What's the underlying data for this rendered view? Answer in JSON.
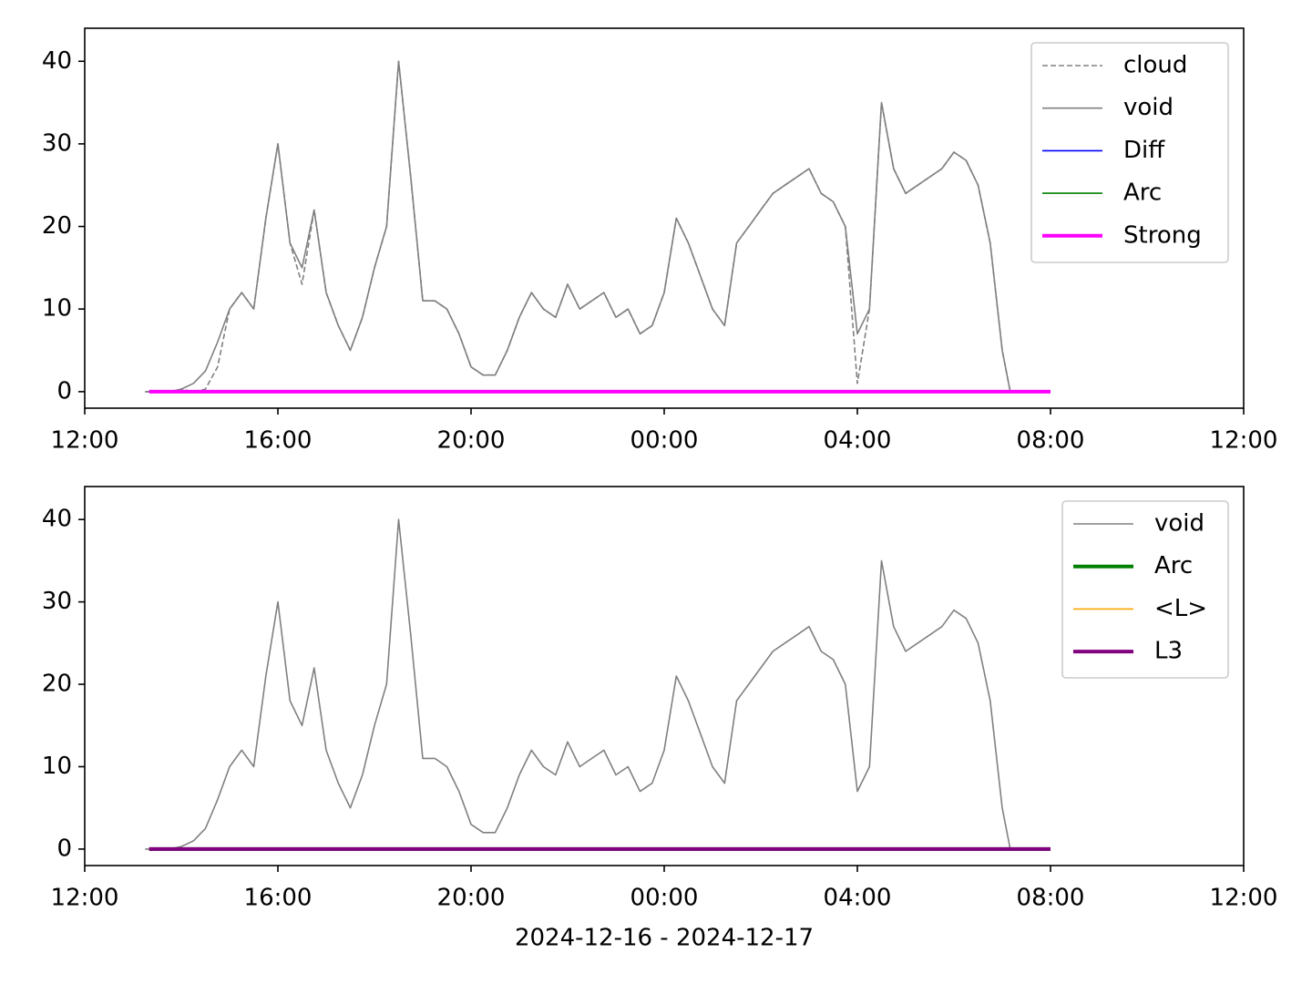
{
  "chart_data": [
    {
      "type": "line",
      "x": [
        "2024-12-16T13:15",
        "2024-12-16T13:30",
        "2024-12-16T13:45",
        "2024-12-16T14:00",
        "2024-12-16T14:15",
        "2024-12-16T14:30",
        "2024-12-16T14:45",
        "2024-12-16T15:00",
        "2024-12-16T15:15",
        "2024-12-16T15:30",
        "2024-12-16T15:45",
        "2024-12-16T16:00",
        "2024-12-16T16:15",
        "2024-12-16T16:30",
        "2024-12-16T16:45",
        "2024-12-16T17:00",
        "2024-12-16T17:15",
        "2024-12-16T17:30",
        "2024-12-16T17:45",
        "2024-12-16T18:00",
        "2024-12-16T18:15",
        "2024-12-16T18:30",
        "2024-12-16T18:45",
        "2024-12-16T19:00",
        "2024-12-16T19:15",
        "2024-12-16T19:30",
        "2024-12-16T19:45",
        "2024-12-16T20:00",
        "2024-12-16T20:15",
        "2024-12-16T20:30",
        "2024-12-16T20:45",
        "2024-12-16T21:00",
        "2024-12-16T21:15",
        "2024-12-16T21:30",
        "2024-12-16T21:45",
        "2024-12-16T22:00",
        "2024-12-16T22:15",
        "2024-12-16T22:30",
        "2024-12-16T22:45",
        "2024-12-16T23:00",
        "2024-12-16T23:15",
        "2024-12-16T23:30",
        "2024-12-16T23:45",
        "2024-12-17T00:00",
        "2024-12-17T00:15",
        "2024-12-17T00:30",
        "2024-12-17T00:45",
        "2024-12-17T01:00",
        "2024-12-17T01:15",
        "2024-12-17T01:30",
        "2024-12-17T01:45",
        "2024-12-17T02:00",
        "2024-12-17T02:15",
        "2024-12-17T02:30",
        "2024-12-17T02:45",
        "2024-12-17T03:00",
        "2024-12-17T03:15",
        "2024-12-17T03:30",
        "2024-12-17T03:45",
        "2024-12-17T04:00",
        "2024-12-17T04:15",
        "2024-12-17T04:30",
        "2024-12-17T04:45",
        "2024-12-17T05:00",
        "2024-12-17T05:15",
        "2024-12-17T05:30",
        "2024-12-17T05:45",
        "2024-12-17T06:00",
        "2024-12-17T06:15",
        "2024-12-17T06:30",
        "2024-12-17T06:45",
        "2024-12-17T07:00",
        "2024-12-17T07:10"
      ],
      "series": [
        {
          "name": "cloud",
          "color": "#808080",
          "linestyle": "dashed",
          "linewidth": 1.6,
          "values": [
            0,
            0,
            0,
            0.3,
            0,
            0.3,
            3,
            10,
            12,
            10,
            21,
            30,
            18,
            13,
            22,
            12,
            8,
            5,
            9,
            15,
            20,
            40,
            26,
            11,
            11,
            10,
            7,
            3,
            2,
            2,
            5,
            9,
            12,
            10,
            9,
            13,
            10,
            11,
            12,
            9,
            10,
            7,
            8,
            12,
            21,
            18,
            14,
            10,
            8,
            18,
            20,
            22,
            24,
            25,
            26,
            27,
            24,
            23,
            20,
            1,
            10,
            35,
            27,
            24,
            25,
            26,
            27,
            29,
            28,
            25,
            18,
            5,
            0
          ]
        },
        {
          "name": "void",
          "color": "#808080",
          "linewidth": 1.6,
          "values": [
            0,
            0,
            0,
            0.3,
            1,
            2.5,
            6,
            10,
            12,
            10,
            21,
            30,
            18,
            15,
            22,
            12,
            8,
            5,
            9,
            15,
            20,
            40,
            26,
            11,
            11,
            10,
            7,
            3,
            2,
            2,
            5,
            9,
            12,
            10,
            9,
            13,
            10,
            11,
            12,
            9,
            10,
            7,
            8,
            12,
            21,
            18,
            14,
            10,
            8,
            18,
            20,
            22,
            24,
            25,
            26,
            27,
            24,
            23,
            20,
            7,
            10,
            35,
            27,
            24,
            25,
            26,
            27,
            29,
            28,
            25,
            18,
            5,
            0
          ]
        },
        {
          "name": "Diff",
          "color": "#0000ff",
          "linewidth": 1.6,
          "x": [
            "2024-12-16T13:20",
            "2024-12-17T08:00"
          ],
          "values": [
            0,
            0
          ]
        },
        {
          "name": "Arc",
          "color": "#008000",
          "linewidth": 1.6,
          "x": [
            "2024-12-16T13:20",
            "2024-12-17T08:00"
          ],
          "values": [
            0,
            0
          ]
        },
        {
          "name": "Strong",
          "color": "#ff00ff",
          "linewidth": 4,
          "x": [
            "2024-12-16T13:20",
            "2024-12-17T08:00"
          ],
          "values": [
            0,
            0
          ]
        }
      ],
      "xlim": [
        "2024-12-16T12:00",
        "2024-12-17T12:00"
      ],
      "xticks": [
        {
          "value": "2024-12-16T12:00",
          "label": "12:00"
        },
        {
          "value": "2024-12-16T16:00",
          "label": "16:00"
        },
        {
          "value": "2024-12-16T20:00",
          "label": "20:00"
        },
        {
          "value": "2024-12-17T00:00",
          "label": "00:00"
        },
        {
          "value": "2024-12-17T04:00",
          "label": "04:00"
        },
        {
          "value": "2024-12-17T08:00",
          "label": "08:00"
        },
        {
          "value": "2024-12-17T12:00",
          "label": "12:00"
        }
      ],
      "ylim": [
        -2,
        44
      ],
      "yticks": [
        0,
        10,
        20,
        30,
        40
      ],
      "legend": "upper right"
    },
    {
      "type": "line",
      "x": [
        "2024-12-16T13:15",
        "2024-12-16T13:30",
        "2024-12-16T13:45",
        "2024-12-16T14:00",
        "2024-12-16T14:15",
        "2024-12-16T14:30",
        "2024-12-16T14:45",
        "2024-12-16T15:00",
        "2024-12-16T15:15",
        "2024-12-16T15:30",
        "2024-12-16T15:45",
        "2024-12-16T16:00",
        "2024-12-16T16:15",
        "2024-12-16T16:30",
        "2024-12-16T16:45",
        "2024-12-16T17:00",
        "2024-12-16T17:15",
        "2024-12-16T17:30",
        "2024-12-16T17:45",
        "2024-12-16T18:00",
        "2024-12-16T18:15",
        "2024-12-16T18:30",
        "2024-12-16T18:45",
        "2024-12-16T19:00",
        "2024-12-16T19:15",
        "2024-12-16T19:30",
        "2024-12-16T19:45",
        "2024-12-16T20:00",
        "2024-12-16T20:15",
        "2024-12-16T20:30",
        "2024-12-16T20:45",
        "2024-12-16T21:00",
        "2024-12-16T21:15",
        "2024-12-16T21:30",
        "2024-12-16T21:45",
        "2024-12-16T22:00",
        "2024-12-16T22:15",
        "2024-12-16T22:30",
        "2024-12-16T22:45",
        "2024-12-16T23:00",
        "2024-12-16T23:15",
        "2024-12-16T23:30",
        "2024-12-16T23:45",
        "2024-12-17T00:00",
        "2024-12-17T00:15",
        "2024-12-17T00:30",
        "2024-12-17T00:45",
        "2024-12-17T01:00",
        "2024-12-17T01:15",
        "2024-12-17T01:30",
        "2024-12-17T01:45",
        "2024-12-17T02:00",
        "2024-12-17T02:15",
        "2024-12-17T02:30",
        "2024-12-17T02:45",
        "2024-12-17T03:00",
        "2024-12-17T03:15",
        "2024-12-17T03:30",
        "2024-12-17T03:45",
        "2024-12-17T04:00",
        "2024-12-17T04:15",
        "2024-12-17T04:30",
        "2024-12-17T04:45",
        "2024-12-17T05:00",
        "2024-12-17T05:15",
        "2024-12-17T05:30",
        "2024-12-17T05:45",
        "2024-12-17T06:00",
        "2024-12-17T06:15",
        "2024-12-17T06:30",
        "2024-12-17T06:45",
        "2024-12-17T07:00",
        "2024-12-17T07:10"
      ],
      "series": [
        {
          "name": "void",
          "color": "#808080",
          "linewidth": 1.6,
          "values": [
            0,
            0,
            0,
            0.3,
            1,
            2.5,
            6,
            10,
            12,
            10,
            21,
            30,
            18,
            15,
            22,
            12,
            8,
            5,
            9,
            15,
            20,
            40,
            26,
            11,
            11,
            10,
            7,
            3,
            2,
            2,
            5,
            9,
            12,
            10,
            9,
            13,
            10,
            11,
            12,
            9,
            10,
            7,
            8,
            12,
            21,
            18,
            14,
            10,
            8,
            18,
            20,
            22,
            24,
            25,
            26,
            27,
            24,
            23,
            20,
            7,
            10,
            35,
            27,
            24,
            25,
            26,
            27,
            29,
            28,
            25,
            18,
            5,
            0
          ]
        },
        {
          "name": "Arc",
          "color": "#008000",
          "linewidth": 4,
          "x": [
            "2024-12-16T13:20",
            "2024-12-17T08:00"
          ],
          "values": [
            0,
            0
          ]
        },
        {
          "name": "<L>",
          "color": "#ffa500",
          "linewidth": 1.6,
          "x": [
            "2024-12-16T13:20",
            "2024-12-17T08:00"
          ],
          "values": [
            0,
            0
          ]
        },
        {
          "name": "L3",
          "color": "#800080",
          "linewidth": 4,
          "x": [
            "2024-12-16T13:20",
            "2024-12-17T08:00"
          ],
          "values": [
            0,
            0
          ]
        }
      ],
      "xlim": [
        "2024-12-16T12:00",
        "2024-12-17T12:00"
      ],
      "xticks": [
        {
          "value": "2024-12-16T12:00",
          "label": "12:00"
        },
        {
          "value": "2024-12-16T16:00",
          "label": "16:00"
        },
        {
          "value": "2024-12-16T20:00",
          "label": "20:00"
        },
        {
          "value": "2024-12-17T00:00",
          "label": "00:00"
        },
        {
          "value": "2024-12-17T04:00",
          "label": "04:00"
        },
        {
          "value": "2024-12-17T08:00",
          "label": "08:00"
        },
        {
          "value": "2024-12-17T12:00",
          "label": "12:00"
        }
      ],
      "ylim": [
        -2,
        44
      ],
      "yticks": [
        0,
        10,
        20,
        30,
        40
      ],
      "legend": "upper right",
      "xlabel": "2024-12-16 - 2024-12-17"
    }
  ]
}
